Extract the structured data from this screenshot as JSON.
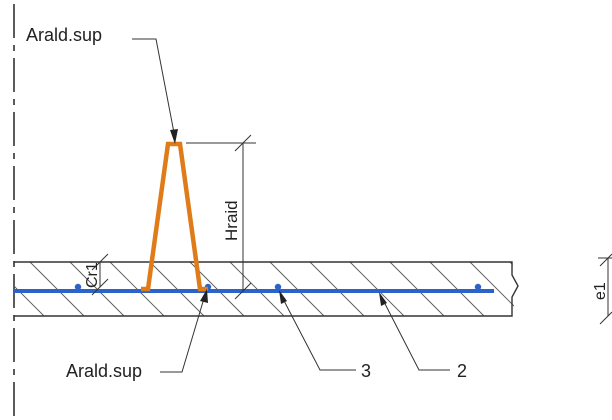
{
  "labels": {
    "top_leader": "Arald.sup",
    "bottom_leader": "Arald.sup",
    "height_dim": "Hraid",
    "cover_dim": "Cr1",
    "thickness_dim": "e1",
    "callout_3": "3",
    "callout_2": "2"
  },
  "colors": {
    "stiffener": "#e07b1a",
    "rebar": "#2b63c9",
    "line": "#333333",
    "hatch": "#555555"
  }
}
